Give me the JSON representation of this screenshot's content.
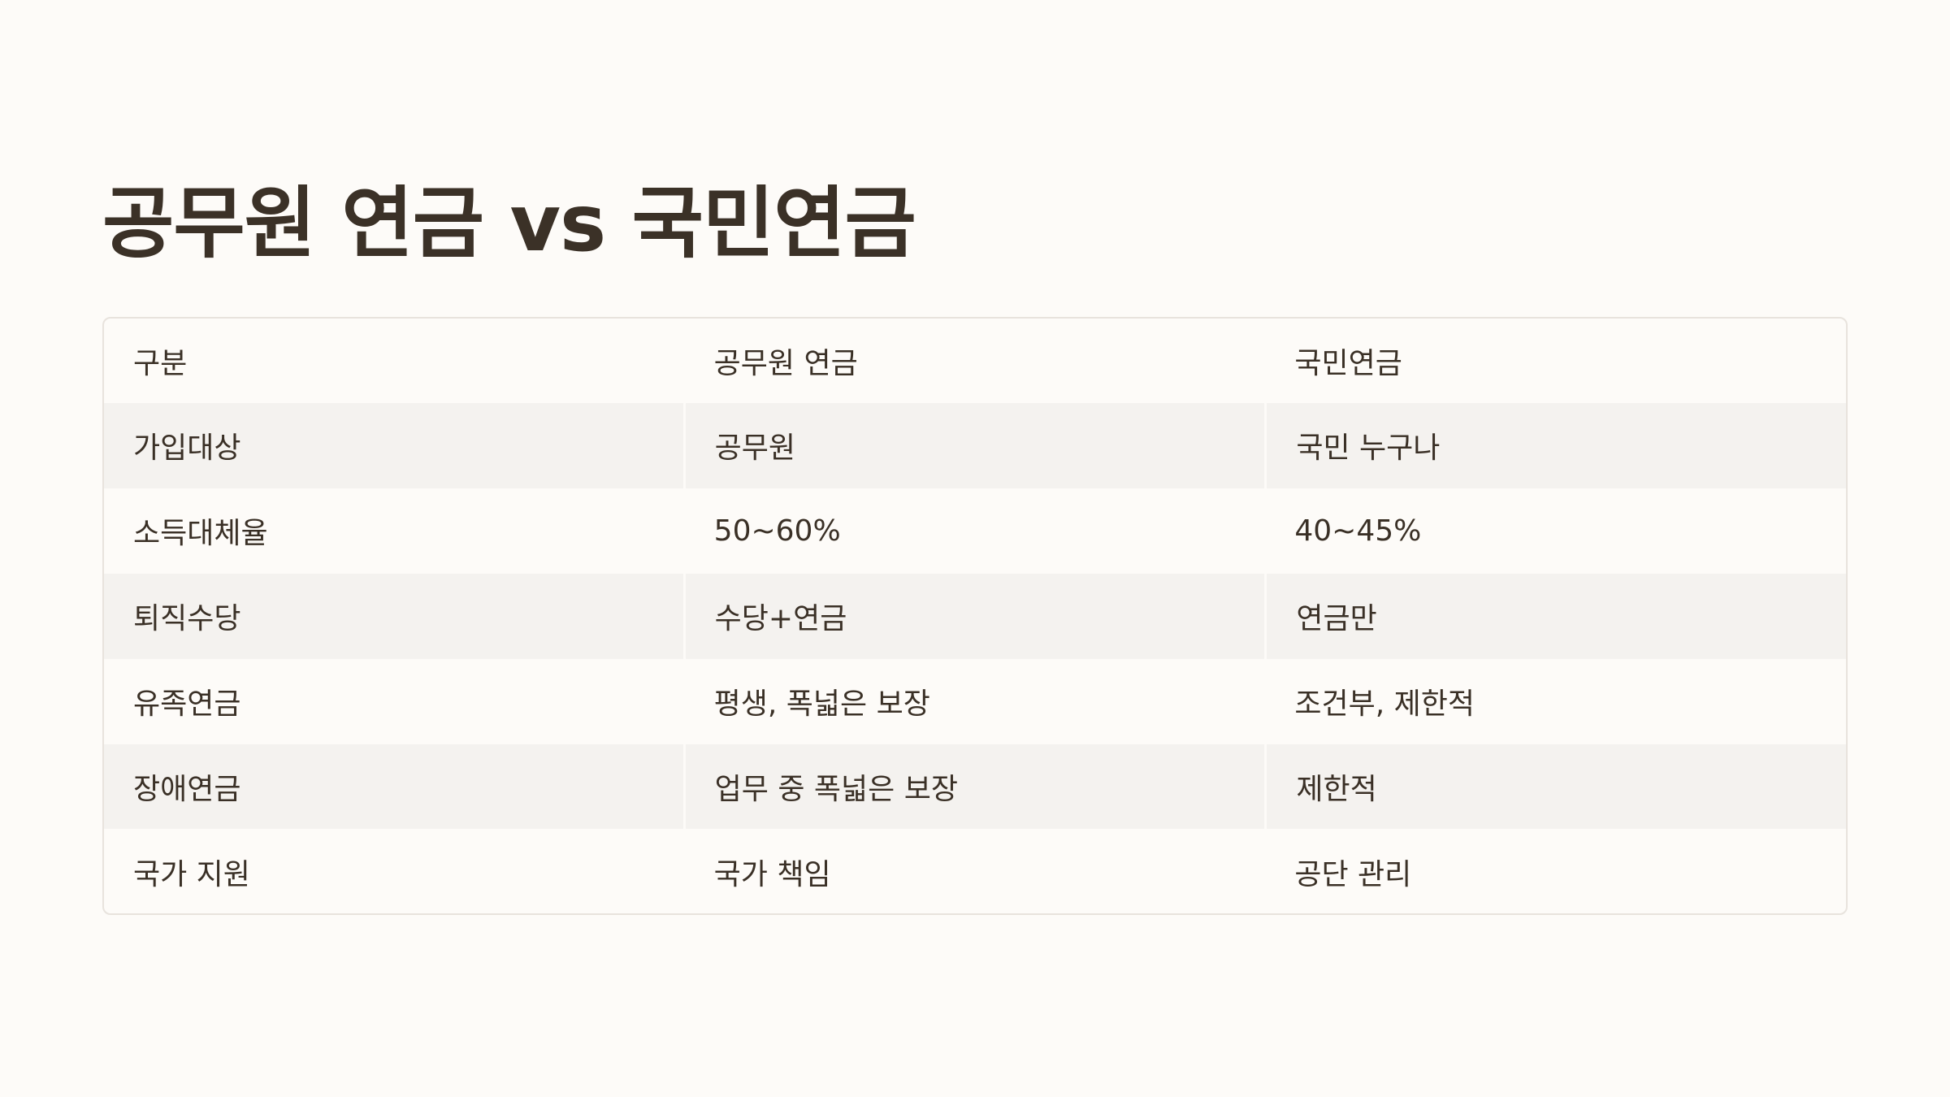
{
  "slide": {
    "title": "공무원 연금 vs 국민연금"
  },
  "table": {
    "headers": [
      "구분",
      "공무원 연금",
      "국민연금"
    ],
    "rows": [
      [
        "가입대상",
        "공무원",
        "국민 누구나"
      ],
      [
        "소득대체율",
        "50~60%",
        "40~45%"
      ],
      [
        "퇴직수당",
        "수당+연금",
        "연금만"
      ],
      [
        "유족연금",
        "평생, 폭넓은 보장",
        "조건부, 제한적"
      ],
      [
        "장애연금",
        "업무 중 폭넓은 보장",
        "제한적"
      ],
      [
        "국가 지원",
        "국가 책임",
        "공단 관리"
      ]
    ]
  },
  "colors": {
    "background": "#fdfbf8",
    "title_text": "#3b3127",
    "body_text": "#3a3026",
    "shaded_row": "#f4f2ef",
    "border": "#e8e3dd"
  }
}
